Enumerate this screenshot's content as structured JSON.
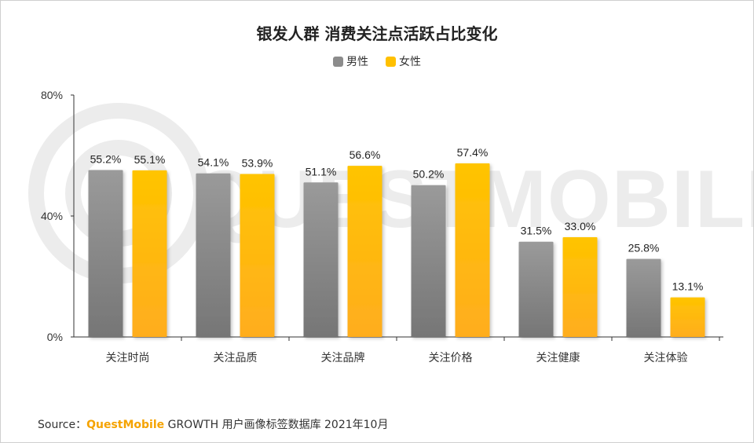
{
  "chart_data": {
    "type": "bar",
    "title": "银发人群 消费关注点活跃占比变化",
    "categories": [
      "关注时尚",
      "关注品质",
      "关注品牌",
      "关注价格",
      "关注健康",
      "关注体验"
    ],
    "series": [
      {
        "name": "男性",
        "values": [
          55.2,
          54.1,
          51.1,
          50.2,
          31.5,
          25.8
        ],
        "color": "#8c8c8c"
      },
      {
        "name": "女性",
        "values": [
          55.1,
          53.9,
          56.6,
          57.4,
          33.0,
          13.1
        ],
        "color": "#ffc000"
      }
    ],
    "value_labels": [
      [
        "55.2%",
        "54.1%",
        "51.1%",
        "50.2%",
        "31.5%",
        "25.8%"
      ],
      [
        "55.1%",
        "53.9%",
        "56.6%",
        "57.4%",
        "33.0%",
        "13.1%"
      ]
    ],
    "ylim": [
      0,
      80
    ],
    "yticks": [
      "0%",
      "40%",
      "80%"
    ],
    "xlabel": "",
    "ylabel": "",
    "legend_position": "top-center",
    "grid": false,
    "watermark": "QUESTMOBILE"
  },
  "source": {
    "prefix": "Source：",
    "brand": "QuestMobile",
    "text": " GROWTH 用户画像标签数据库 2021年10月"
  }
}
